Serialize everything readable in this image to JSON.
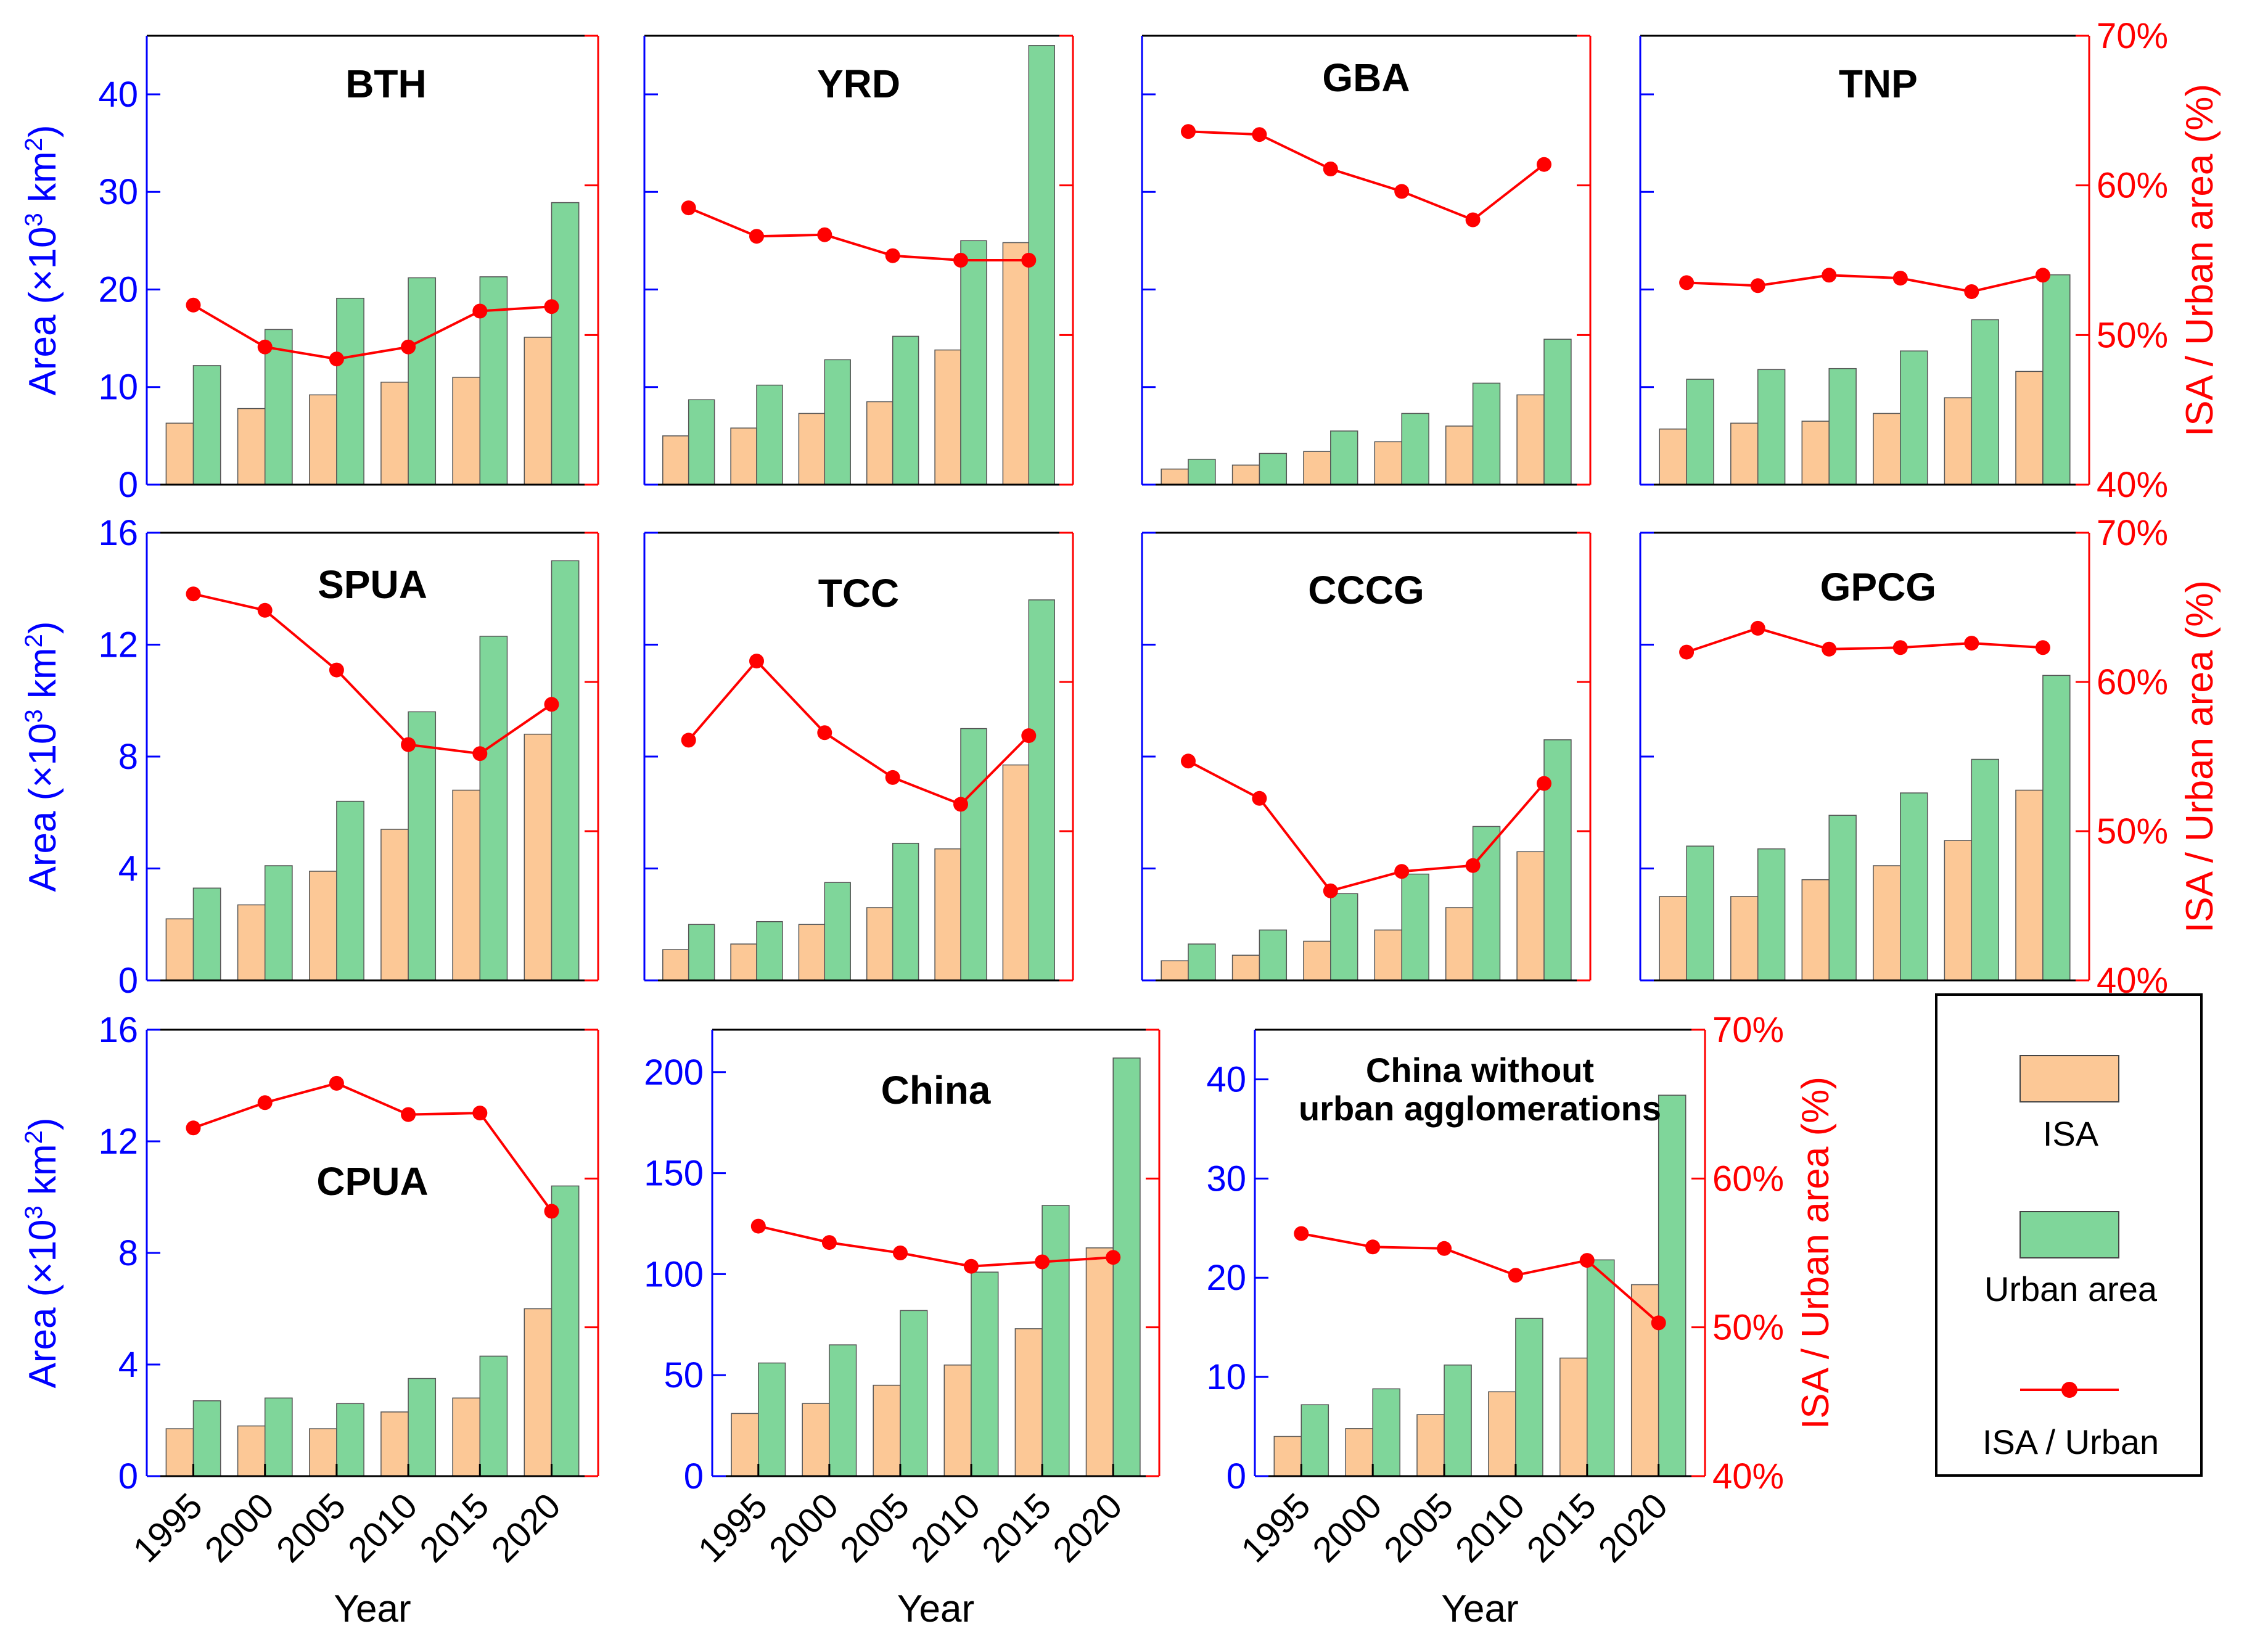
{
  "colors": {
    "isa_fill": "#fcc896",
    "urban_fill": "#7fd69a",
    "ratio_line": "#ff0000",
    "left_axis": "#0000ff",
    "right_axis": "#ff0000",
    "frame": "#000000"
  },
  "axis_text": {
    "left_label_prefix": "Area (×10",
    "left_label_exp": "3",
    "left_label_unit": " km",
    "left_label_unit_exp": "2",
    "left_label_suffix": ")",
    "right_label": "ISA / Urban area (%)",
    "x_label": "Year"
  },
  "legend": {
    "isa_label": "ISA",
    "urban_label": "Urban area",
    "ratio_label": "ISA / Urban"
  },
  "chart_data": [
    {
      "type": "bar",
      "id": "bth",
      "title": "BTH",
      "categories": [
        "1995",
        "2000",
        "2005",
        "2010",
        "2015",
        "2020"
      ],
      "series": [
        {
          "name": "ISA",
          "values": [
            6.3,
            7.8,
            9.2,
            10.5,
            11,
            15.1
          ]
        },
        {
          "name": "Urban area",
          "values": [
            12.2,
            15.9,
            19.1,
            21.2,
            21.3,
            28.9
          ]
        },
        {
          "name": "ISA / Urban",
          "axis": "right",
          "values": [
            52,
            49.2,
            48.4,
            49.2,
            51.6,
            51.9
          ]
        }
      ],
      "ylim": [
        0,
        46
      ],
      "yticks": [
        0,
        10,
        20,
        30,
        40
      ],
      "y2lim": [
        40,
        70
      ],
      "y2ticks": [
        40,
        50,
        60,
        70
      ]
    },
    {
      "type": "bar",
      "id": "yrd",
      "title": "YRD",
      "categories": [
        "1995",
        "2000",
        "2005",
        "2010",
        "2015",
        "2020"
      ],
      "series": [
        {
          "name": "ISA",
          "values": [
            5,
            5.8,
            7.3,
            8.5,
            13.8,
            24.8
          ]
        },
        {
          "name": "Urban area",
          "values": [
            8.7,
            10.2,
            12.8,
            15.2,
            25,
            45
          ]
        },
        {
          "name": "ISA / Urban",
          "axis": "right",
          "values": [
            58.5,
            56.6,
            56.7,
            55.3,
            55,
            55
          ]
        }
      ],
      "ylim": [
        0,
        46
      ],
      "yticks": [
        0,
        10,
        20,
        30,
        40
      ],
      "y2lim": [
        40,
        70
      ],
      "y2ticks": [
        40,
        50,
        60,
        70
      ]
    },
    {
      "type": "bar",
      "id": "gba",
      "title": "GBA",
      "categories": [
        "1995",
        "2000",
        "2005",
        "2010",
        "2015",
        "2020"
      ],
      "series": [
        {
          "name": "ISA",
          "values": [
            1.6,
            2,
            3.4,
            4.4,
            6,
            9.2
          ]
        },
        {
          "name": "Urban area",
          "values": [
            2.6,
            3.2,
            5.5,
            7.3,
            10.4,
            14.9
          ]
        },
        {
          "name": "ISA / Urban",
          "axis": "right",
          "values": [
            63.6,
            63.4,
            61.1,
            59.6,
            57.7,
            61.4
          ]
        }
      ],
      "ylim": [
        0,
        46
      ],
      "yticks": [
        0,
        10,
        20,
        30,
        40
      ],
      "y2lim": [
        40,
        70
      ],
      "y2ticks": [
        40,
        50,
        60,
        70
      ]
    },
    {
      "type": "bar",
      "id": "tnp",
      "title": "TNP",
      "categories": [
        "1995",
        "2000",
        "2005",
        "2010",
        "2015",
        "2020"
      ],
      "series": [
        {
          "name": "ISA",
          "values": [
            5.7,
            6.3,
            6.5,
            7.3,
            8.9,
            11.6
          ]
        },
        {
          "name": "Urban area",
          "values": [
            10.8,
            11.8,
            11.9,
            13.7,
            16.9,
            21.5
          ]
        },
        {
          "name": "ISA / Urban",
          "axis": "right",
          "values": [
            53.5,
            53.3,
            54,
            53.8,
            52.9,
            54
          ]
        }
      ],
      "ylim": [
        0,
        46
      ],
      "yticks": [
        0,
        10,
        20,
        30,
        40
      ],
      "y2lim": [
        40,
        70
      ],
      "y2ticks": [
        40,
        50,
        60,
        70
      ]
    },
    {
      "type": "bar",
      "id": "spua",
      "title": "SPUA",
      "categories": [
        "1995",
        "2000",
        "2005",
        "2010",
        "2015",
        "2020"
      ],
      "series": [
        {
          "name": "ISA",
          "values": [
            2.2,
            2.7,
            3.9,
            5.4,
            6.8,
            8.8
          ]
        },
        {
          "name": "Urban area",
          "values": [
            3.3,
            4.1,
            6.4,
            9.6,
            12.3,
            15
          ]
        },
        {
          "name": "ISA / Urban",
          "axis": "right",
          "values": [
            65.9,
            64.8,
            60.8,
            55.8,
            55.2,
            58.5
          ]
        }
      ],
      "ylim": [
        0,
        16
      ],
      "yticks": [
        0,
        4,
        8,
        12,
        16
      ],
      "y2lim": [
        40,
        70
      ],
      "y2ticks": [
        40,
        50,
        60,
        70
      ]
    },
    {
      "type": "bar",
      "id": "tcc",
      "title": "TCC",
      "categories": [
        "1995",
        "2000",
        "2005",
        "2010",
        "2015",
        "2020"
      ],
      "series": [
        {
          "name": "ISA",
          "values": [
            1.1,
            1.3,
            2,
            2.6,
            4.7,
            7.7
          ]
        },
        {
          "name": "Urban area",
          "values": [
            2,
            2.1,
            3.5,
            4.9,
            9,
            13.6
          ]
        },
        {
          "name": "ISA / Urban",
          "axis": "right",
          "values": [
            56.1,
            61.4,
            56.6,
            53.6,
            51.8,
            56.4
          ]
        }
      ],
      "ylim": [
        0,
        16
      ],
      "yticks": [
        0,
        4,
        8,
        12,
        16
      ],
      "y2lim": [
        40,
        70
      ],
      "y2ticks": [
        40,
        50,
        60,
        70
      ]
    },
    {
      "type": "bar",
      "id": "cccg",
      "title": "CCCG",
      "categories": [
        "1995",
        "2000",
        "2005",
        "2010",
        "2015",
        "2020"
      ],
      "series": [
        {
          "name": "ISA",
          "values": [
            0.7,
            0.9,
            1.4,
            1.8,
            2.6,
            4.6
          ]
        },
        {
          "name": "Urban area",
          "values": [
            1.3,
            1.8,
            3.1,
            3.8,
            5.5,
            8.6
          ]
        },
        {
          "name": "ISA / Urban",
          "axis": "right",
          "values": [
            54.7,
            52.2,
            46,
            47.3,
            47.7,
            53.2
          ]
        }
      ],
      "ylim": [
        0,
        16
      ],
      "yticks": [
        0,
        4,
        8,
        12,
        16
      ],
      "y2lim": [
        40,
        70
      ],
      "y2ticks": [
        40,
        50,
        60,
        70
      ]
    },
    {
      "type": "bar",
      "id": "gpcg",
      "title": "GPCG",
      "categories": [
        "1995",
        "2000",
        "2005",
        "2010",
        "2015",
        "2020"
      ],
      "series": [
        {
          "name": "ISA",
          "values": [
            3,
            3,
            3.6,
            4.1,
            5,
            6.8
          ]
        },
        {
          "name": "Urban area",
          "values": [
            4.8,
            4.7,
            5.9,
            6.7,
            7.9,
            10.9
          ]
        },
        {
          "name": "ISA / Urban",
          "axis": "right",
          "values": [
            62,
            63.6,
            62.2,
            62.3,
            62.6,
            62.3
          ]
        }
      ],
      "ylim": [
        0,
        16
      ],
      "yticks": [
        0,
        4,
        8,
        12,
        16
      ],
      "y2lim": [
        40,
        70
      ],
      "y2ticks": [
        40,
        50,
        60,
        70
      ]
    },
    {
      "type": "bar",
      "id": "cpua",
      "title": "CPUA",
      "categories": [
        "1995",
        "2000",
        "2005",
        "2010",
        "2015",
        "2020"
      ],
      "series": [
        {
          "name": "ISA",
          "values": [
            1.7,
            1.8,
            1.7,
            2.3,
            2.8,
            6
          ]
        },
        {
          "name": "Urban area",
          "values": [
            2.7,
            2.8,
            2.6,
            3.5,
            4.3,
            10.4
          ]
        },
        {
          "name": "ISA / Urban",
          "axis": "right",
          "values": [
            63.4,
            65.1,
            66.4,
            64.3,
            64.4,
            57.8
          ]
        }
      ],
      "ylim": [
        0,
        16
      ],
      "yticks": [
        0,
        4,
        8,
        12,
        16
      ],
      "y2lim": [
        40,
        70
      ],
      "y2ticks": [
        40,
        50,
        60,
        70
      ]
    },
    {
      "type": "bar",
      "id": "china",
      "title": "China",
      "categories": [
        "1995",
        "2000",
        "2005",
        "2010",
        "2015",
        "2020"
      ],
      "series": [
        {
          "name": "ISA",
          "values": [
            31,
            36,
            45,
            55,
            73,
            113
          ]
        },
        {
          "name": "Urban area",
          "values": [
            56,
            65,
            82,
            101,
            134,
            207
          ]
        },
        {
          "name": "ISA / Urban",
          "axis": "right",
          "values": [
            56.8,
            55.7,
            55,
            54.1,
            54.4,
            54.7
          ]
        }
      ],
      "ylim": [
        0,
        221
      ],
      "yticks": [
        0,
        50,
        100,
        150,
        200
      ],
      "y2lim": [
        40,
        70
      ],
      "y2ticks": [
        40,
        50,
        60,
        70
      ]
    },
    {
      "type": "bar",
      "id": "nonua",
      "title": "China without urban agglomerations",
      "title_lines": [
        "China without",
        "urban agglomerations"
      ],
      "categories": [
        "1995",
        "2000",
        "2005",
        "2010",
        "2015",
        "2020"
      ],
      "series": [
        {
          "name": "ISA",
          "values": [
            4,
            4.8,
            6.2,
            8.5,
            11.9,
            19.3
          ]
        },
        {
          "name": "Urban area",
          "values": [
            7.2,
            8.8,
            11.2,
            15.9,
            21.8,
            38.4
          ]
        },
        {
          "name": "ISA / Urban",
          "axis": "right",
          "values": [
            56.3,
            55.4,
            55.3,
            53.5,
            54.5,
            50.3
          ]
        }
      ],
      "ylim": [
        0,
        45
      ],
      "yticks": [
        0,
        10,
        20,
        30,
        40
      ],
      "y2lim": [
        40,
        70
      ],
      "y2ticks": [
        40,
        50,
        60,
        70
      ]
    }
  ]
}
